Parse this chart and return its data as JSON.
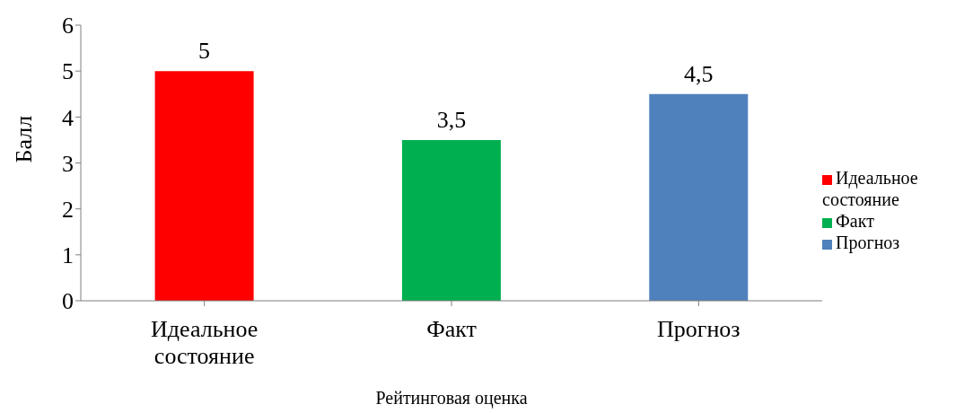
{
  "chart_data": {
    "type": "bar",
    "xlabel": "Рейтинговая оценка",
    "ylabel": "Балл",
    "categories": [
      "Идеальное состояние",
      "Факт",
      "Прогноз"
    ],
    "stacked": true,
    "series": [
      {
        "name": "Идеальное состояние",
        "color": "#ff0000",
        "values": [
          5,
          null,
          null
        ],
        "value_labels": [
          "5",
          null,
          null
        ]
      },
      {
        "name": "Факт",
        "color": "#00b050",
        "values": [
          null,
          3.5,
          null
        ],
        "value_labels": [
          null,
          "3,5",
          null
        ]
      },
      {
        "name": "Прогноз",
        "color": "#4f81bd",
        "values": [
          null,
          null,
          4.5
        ],
        "value_labels": [
          null,
          null,
          "4,5"
        ]
      }
    ],
    "ylim": [
      0,
      6
    ],
    "yticks": [
      0,
      1,
      2,
      3,
      4,
      5,
      6
    ],
    "grid": false,
    "legend": "right"
  }
}
